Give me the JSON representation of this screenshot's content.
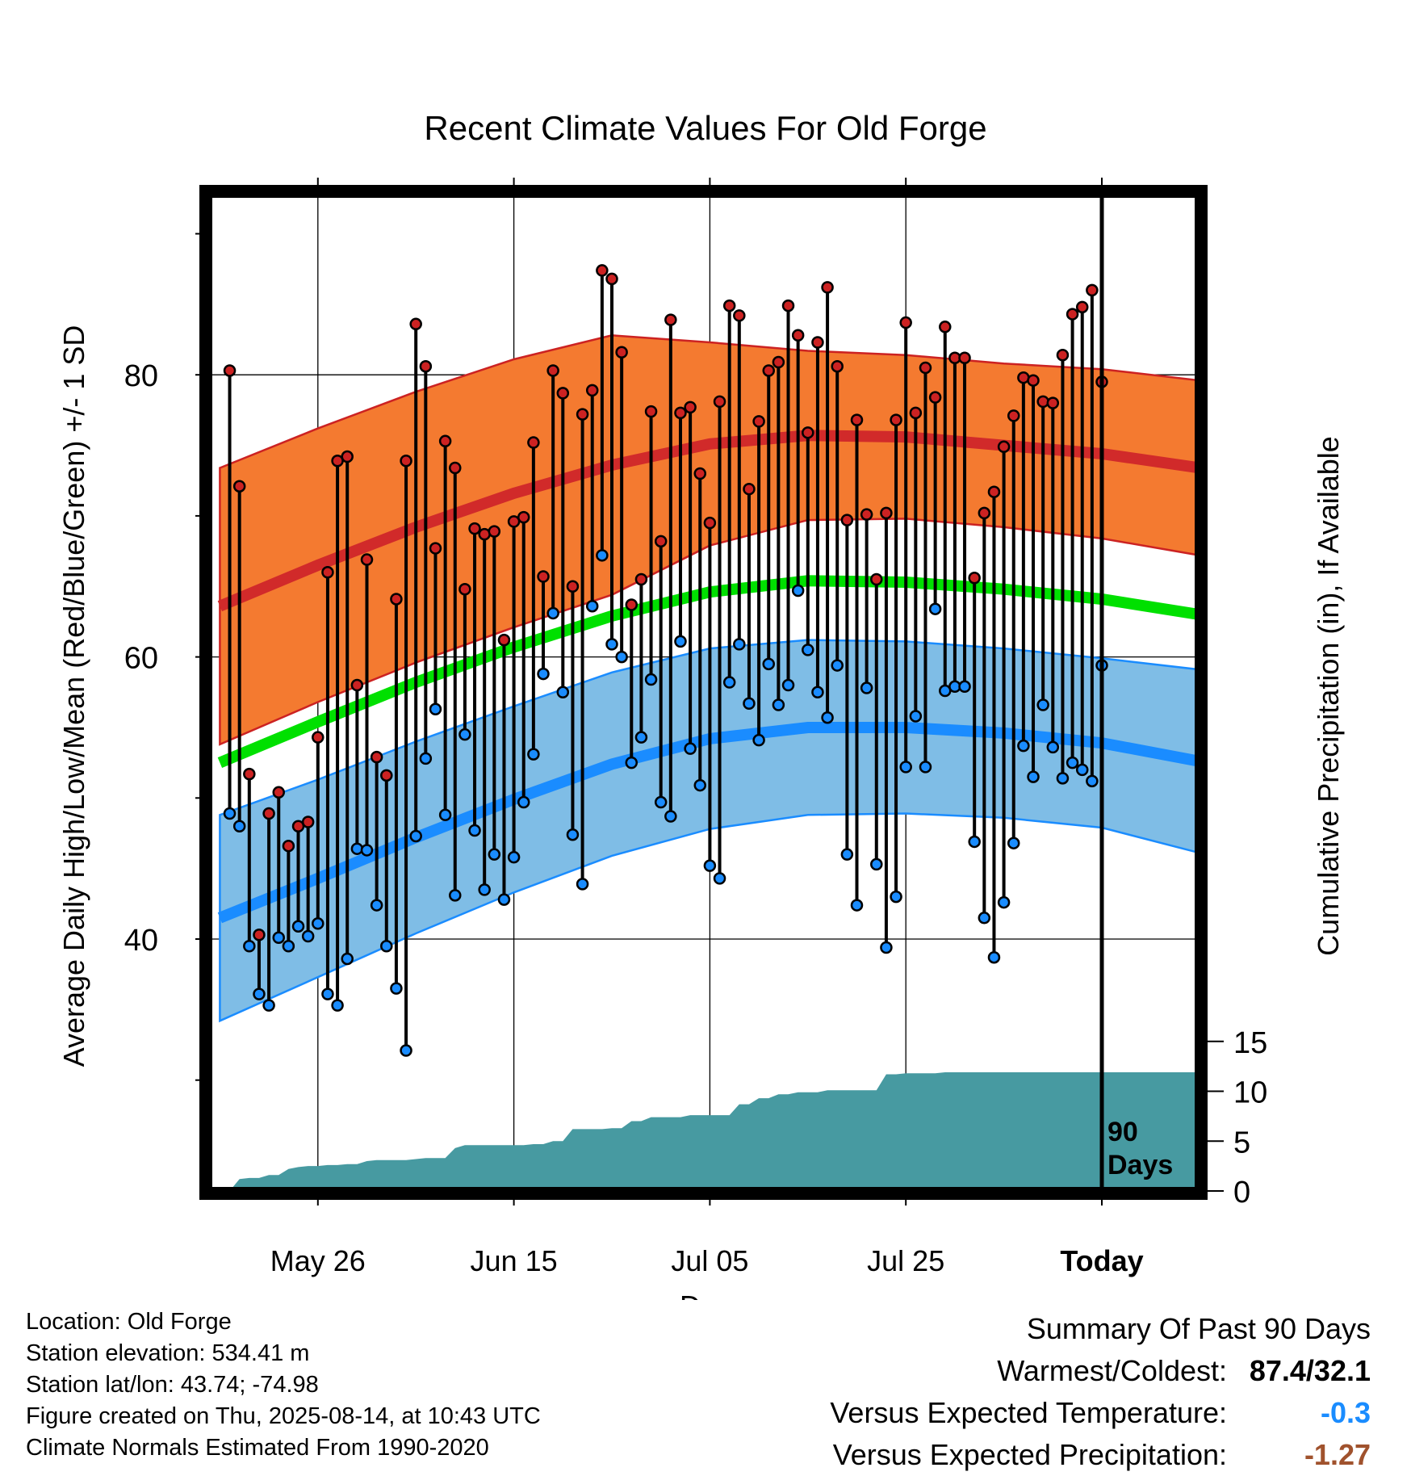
{
  "chart_data": {
    "type": "line",
    "title": "Recent Climate Values For Old Forge",
    "xlabel": "Day",
    "ylabel": "Average Daily High/Low/Mean (Red/Blue/Green) +/- 1 SD",
    "y2label": "Cumulative Precipitation (in), If Available",
    "x_range_days": [
      -90,
      10
    ],
    "x_ticks": [
      {
        "day": -80,
        "label": "May 26"
      },
      {
        "day": -60,
        "label": "Jun 15"
      },
      {
        "day": -40,
        "label": "Jul 05"
      },
      {
        "day": -20,
        "label": "Jul 25"
      },
      {
        "day": 0,
        "label": "Today"
      }
    ],
    "ylim": [
      23,
      94
    ],
    "y_ticks": [
      40,
      60,
      80
    ],
    "y_minor_ticks": [
      30,
      50,
      70,
      90
    ],
    "y2_ticks": [
      0,
      5,
      10,
      15
    ],
    "today_label": [
      "90",
      "Days"
    ],
    "normals": {
      "days": [
        -90,
        -80,
        -70,
        -60,
        -50,
        -40,
        -30,
        -20,
        -10,
        0,
        10
      ],
      "high_mean": [
        63.6,
        66.5,
        69.2,
        71.6,
        73.6,
        75.1,
        75.7,
        75.6,
        75.0,
        74.4,
        73.4
      ],
      "high_sd": [
        9.8,
        9.7,
        9.6,
        9.5,
        9.2,
        7.2,
        6.0,
        5.8,
        5.8,
        6.0,
        6.2
      ],
      "mean": [
        52.5,
        55.4,
        58.2,
        60.7,
        62.9,
        64.6,
        65.4,
        65.3,
        64.8,
        64.1,
        63.0
      ],
      "low_mean": [
        41.5,
        44.3,
        47.2,
        49.9,
        52.4,
        54.2,
        55.0,
        55.0,
        54.6,
        53.9,
        52.6
      ],
      "low_sd": [
        7.3,
        7.0,
        6.8,
        6.6,
        6.5,
        6.4,
        6.2,
        6.1,
        6.0,
        6.0,
        6.5
      ],
      "colors": {
        "high_band": "#f47a30",
        "high_line": "#d12a2a",
        "mean_line": "#00e000",
        "low_band": "#7fbde6",
        "low_line": "#1a8cff",
        "precip": "#479aa1"
      }
    },
    "series": [
      {
        "name": "High",
        "color": "#cc2222",
        "values": [
          80.3,
          72.1,
          51.7,
          40.3,
          48.9,
          50.4,
          46.6,
          48.0,
          48.3,
          54.3,
          66.0,
          73.9,
          74.2,
          58.0,
          66.9,
          52.9,
          51.6,
          64.1,
          73.9,
          83.6,
          80.6,
          67.7,
          75.3,
          73.4,
          64.8,
          69.1,
          68.7,
          68.9,
          61.2,
          69.6,
          69.9,
          75.2,
          65.7,
          80.3,
          78.7,
          65.0,
          77.2,
          78.9,
          87.4,
          86.8,
          81.6,
          63.7,
          65.5,
          77.4,
          68.2,
          83.9,
          77.3,
          77.7,
          73.0,
          69.5,
          78.1,
          84.9,
          84.2,
          71.9,
          76.7,
          80.3,
          80.9,
          84.9,
          82.8,
          75.9,
          82.3,
          86.2,
          80.6,
          69.7,
          76.8,
          70.1,
          65.5,
          70.2,
          76.8,
          83.7,
          77.3,
          80.5,
          78.4,
          83.4,
          81.2,
          81.2,
          65.6,
          70.2,
          71.7,
          74.9,
          77.1,
          79.8,
          79.6,
          78.1,
          78.0,
          81.4,
          84.3,
          84.8,
          86.0,
          79.5
        ]
      },
      {
        "name": "Low",
        "color": "#1a8cff",
        "values": [
          48.9,
          48.0,
          39.5,
          36.1,
          35.3,
          40.1,
          39.5,
          40.9,
          40.2,
          41.1,
          36.1,
          35.3,
          38.6,
          46.4,
          46.3,
          42.4,
          39.5,
          36.5,
          32.1,
          47.3,
          52.8,
          56.3,
          48.8,
          43.1,
          54.5,
          47.7,
          43.5,
          46.0,
          42.8,
          45.8,
          49.7,
          53.1,
          58.8,
          63.1,
          57.5,
          47.4,
          43.9,
          63.6,
          67.2,
          60.9,
          60.0,
          52.5,
          54.3,
          58.4,
          49.7,
          48.7,
          61.1,
          53.5,
          50.9,
          45.2,
          44.3,
          58.2,
          60.9,
          56.7,
          54.1,
          59.5,
          56.6,
          58.0,
          64.7,
          60.5,
          57.5,
          55.7,
          59.4,
          46.0,
          42.4,
          57.8,
          45.3,
          39.4,
          43.0,
          52.2,
          55.8,
          52.2,
          63.4,
          57.6,
          57.9,
          57.9,
          46.9,
          41.5,
          38.7,
          42.6,
          46.8,
          53.7,
          51.5,
          56.6,
          53.6,
          51.4,
          52.5,
          52.0,
          51.2,
          59.4
        ]
      }
    ],
    "precip_cumulative": {
      "days": [
        -89,
        -88,
        -87,
        -86,
        -85,
        -84,
        -83,
        -82,
        -81,
        -80,
        -79,
        -78,
        -77,
        -76,
        -75,
        -74,
        -73,
        -72,
        -71,
        -70,
        -69,
        -68,
        -67,
        -66,
        -65,
        -64,
        -63,
        -62,
        -61,
        -60,
        -59,
        -58,
        -57,
        -56,
        -55,
        -54,
        -53,
        -52,
        -51,
        -50,
        -49,
        -48,
        -47,
        -46,
        -45,
        -44,
        -43,
        -42,
        -41,
        -40,
        -39,
        -38,
        -37,
        -36,
        -35,
        -34,
        -33,
        -32,
        -31,
        -30,
        -29,
        -28,
        -27,
        -26,
        -25,
        -24,
        -23,
        -22,
        -21,
        -20,
        -19,
        -18,
        -17,
        -16,
        -15,
        -14,
        -13,
        -12,
        -11,
        -10,
        -9,
        -8,
        -7,
        -6,
        -5,
        -4,
        -3,
        -2,
        -1,
        0,
        10
      ],
      "values": [
        0.0,
        1.2,
        1.3,
        1.3,
        1.6,
        1.6,
        2.2,
        2.4,
        2.5,
        2.5,
        2.6,
        2.6,
        2.7,
        2.7,
        3.0,
        3.1,
        3.1,
        3.1,
        3.1,
        3.2,
        3.3,
        3.3,
        3.3,
        4.3,
        4.6,
        4.6,
        4.6,
        4.6,
        4.6,
        4.6,
        4.6,
        4.7,
        4.7,
        5.0,
        5.0,
        6.2,
        6.2,
        6.2,
        6.2,
        6.3,
        6.3,
        7.0,
        7.0,
        7.4,
        7.4,
        7.4,
        7.4,
        7.6,
        7.6,
        7.6,
        7.6,
        7.6,
        8.7,
        8.7,
        9.3,
        9.3,
        9.7,
        9.7,
        9.9,
        9.9,
        9.9,
        10.1,
        10.1,
        10.1,
        10.1,
        10.1,
        10.1,
        11.7,
        11.7,
        11.8,
        11.8,
        11.8,
        11.8,
        11.9,
        11.9,
        11.9,
        11.9,
        11.9,
        11.9,
        11.9,
        11.9,
        11.9,
        11.9,
        11.9,
        11.9,
        11.9,
        11.9,
        11.9,
        11.9,
        11.9,
        11.9
      ]
    }
  },
  "info": {
    "location": "Location: Old Forge",
    "elevation": "Station elevation: 534.41 m",
    "latlon": "Station lat/lon: 43.74; -74.98",
    "created": "Figure created on Thu, 2025-08-14, at 10:43 UTC",
    "normals": "Climate Normals Estimated From 1990-2020"
  },
  "summary": {
    "heading": "Summary Of Past 90 Days",
    "warmest_label": "Warmest/Coldest:",
    "warmest_value": "87.4/32.1",
    "temp_label": "Versus Expected Temperature:",
    "temp_value": "-0.3",
    "temp_color": "#1a8cff",
    "precip_label": "Versus Expected Precipitation:",
    "precip_value": "-1.27",
    "precip_color": "#a0522d"
  }
}
